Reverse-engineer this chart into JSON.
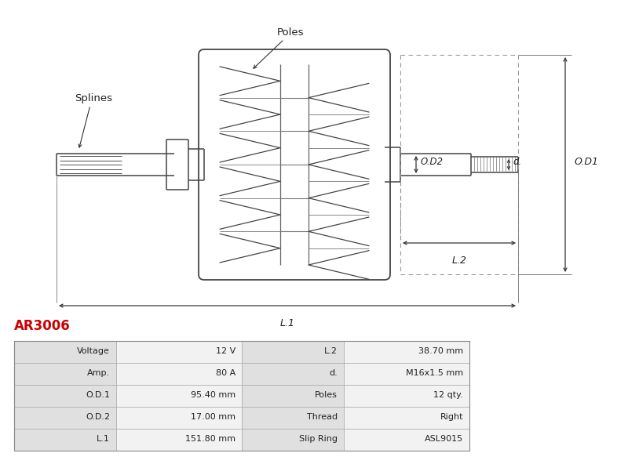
{
  "title_code": "AR3006",
  "title_color": "#cc0000",
  "bg_color": "#ffffff",
  "table_data": [
    [
      "Voltage",
      "12 V",
      "L.2",
      "38.70 mm"
    ],
    [
      "Amp.",
      "80 A",
      "d.",
      "M16x1.5 mm"
    ],
    [
      "O.D.1",
      "95.40 mm",
      "Poles",
      "12 qty."
    ],
    [
      "O.D.2",
      "17.00 mm",
      "Thread",
      "Right"
    ],
    [
      "L.1",
      "151.80 mm",
      "Slip Ring",
      "ASL9015"
    ]
  ],
  "line_color": "#444444",
  "dim_color": "#333333",
  "label_bg": "#e0e0e0",
  "value_bg": "#f2f2f2",
  "border_color": "#aaaaaa",
  "text_color": "#222222",
  "dot_color": "#888888",
  "title_color_str": "#cc0000"
}
